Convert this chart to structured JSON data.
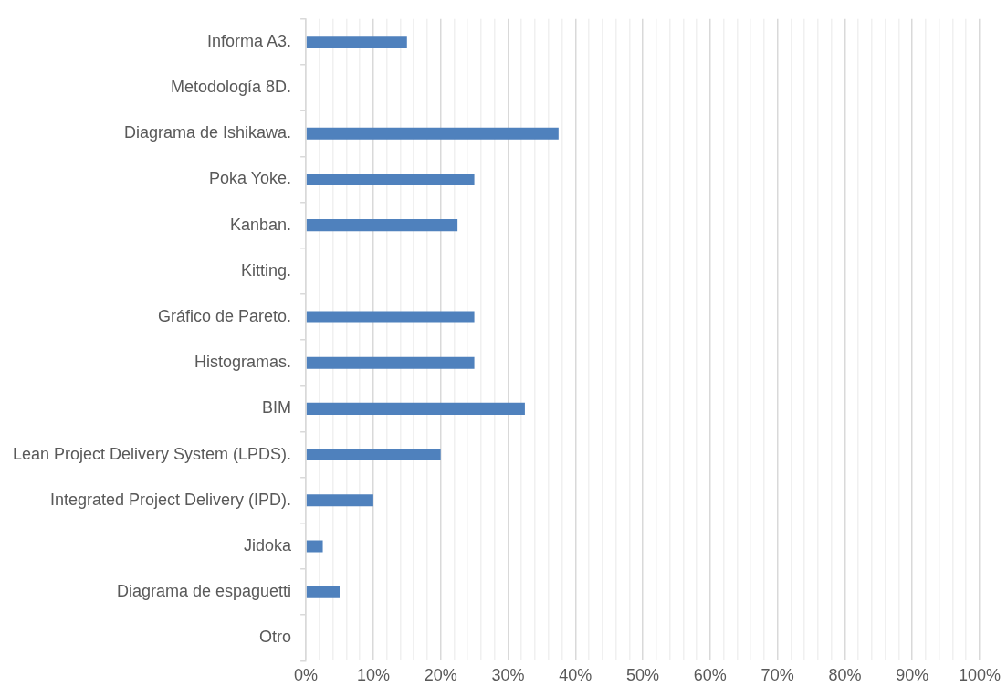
{
  "chart_data": {
    "type": "bar",
    "orientation": "horizontal",
    "color": "#4f81bd",
    "grid": "x",
    "legend": false,
    "categories": [
      "Informa A3.",
      "Metodología 8D.",
      "Diagrama de Ishikawa.",
      "Poka Yoke.",
      "Kanban.",
      "Kitting.",
      "Gráfico de Pareto.",
      "Histogramas.",
      "BIM",
      "Lean Project Delivery System (LPDS).",
      "Integrated Project Delivery (IPD).",
      "Jidoka",
      "Diagrama de espaguetti",
      "Otro"
    ],
    "values": [
      15,
      0,
      37.5,
      25,
      22.5,
      0,
      25,
      25,
      32.5,
      20,
      10,
      2.5,
      5,
      0
    ],
    "xlim": [
      0,
      100
    ],
    "xticks": [
      {
        "value": 0,
        "label": "0%"
      },
      {
        "value": 2,
        "label": null
      },
      {
        "value": 4,
        "label": null
      },
      {
        "value": 6,
        "label": null
      },
      {
        "value": 8,
        "label": null
      },
      {
        "value": 10,
        "label": "10%"
      },
      {
        "value": 12,
        "label": null
      },
      {
        "value": 14,
        "label": null
      },
      {
        "value": 16,
        "label": null
      },
      {
        "value": 18,
        "label": null
      },
      {
        "value": 20,
        "label": "20%"
      },
      {
        "value": 22,
        "label": null
      },
      {
        "value": 24,
        "label": null
      },
      {
        "value": 26,
        "label": null
      },
      {
        "value": 28,
        "label": null
      },
      {
        "value": 30,
        "label": "30%"
      },
      {
        "value": 32,
        "label": null
      },
      {
        "value": 34,
        "label": null
      },
      {
        "value": 36,
        "label": null
      },
      {
        "value": 38,
        "label": null
      },
      {
        "value": 40,
        "label": "40%"
      },
      {
        "value": 42,
        "label": null
      },
      {
        "value": 44,
        "label": null
      },
      {
        "value": 46,
        "label": null
      },
      {
        "value": 48,
        "label": null
      },
      {
        "value": 50,
        "label": "50%"
      },
      {
        "value": 52,
        "label": null
      },
      {
        "value": 54,
        "label": null
      },
      {
        "value": 56,
        "label": null
      },
      {
        "value": 58,
        "label": null
      },
      {
        "value": 60,
        "label": "60%"
      },
      {
        "value": 62,
        "label": null
      },
      {
        "value": 64,
        "label": null
      },
      {
        "value": 66,
        "label": null
      },
      {
        "value": 68,
        "label": null
      },
      {
        "value": 70,
        "label": "70%"
      },
      {
        "value": 72,
        "label": null
      },
      {
        "value": 74,
        "label": null
      },
      {
        "value": 76,
        "label": null
      },
      {
        "value": 78,
        "label": null
      },
      {
        "value": 80,
        "label": "80%"
      },
      {
        "value": 82,
        "label": null
      },
      {
        "value": 84,
        "label": null
      },
      {
        "value": 86,
        "label": null
      },
      {
        "value": 88,
        "label": null
      },
      {
        "value": 90,
        "label": "90%"
      },
      {
        "value": 92,
        "label": null
      },
      {
        "value": 94,
        "label": null
      },
      {
        "value": 96,
        "label": null
      },
      {
        "value": 98,
        "label": null
      },
      {
        "value": 100,
        "label": "100%"
      }
    ]
  }
}
